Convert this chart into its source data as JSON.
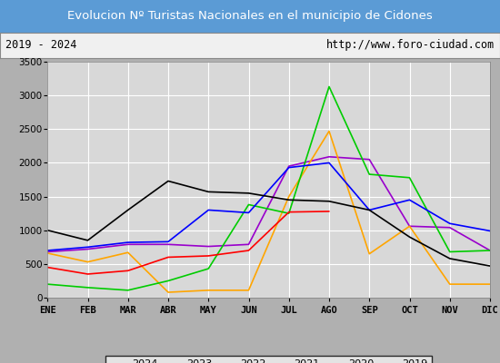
{
  "title": "Evolucion Nº Turistas Nacionales en el municipio de Cidones",
  "subtitle_left": "2019 - 2024",
  "subtitle_right": "http://www.foro-ciudad.com",
  "months": [
    "ENE",
    "FEB",
    "MAR",
    "ABR",
    "MAY",
    "JUN",
    "JUL",
    "AGO",
    "SEP",
    "OCT",
    "NOV",
    "DIC"
  ],
  "series": {
    "2024": [
      450,
      350,
      400,
      600,
      620,
      700,
      1270,
      1280,
      null,
      null,
      null,
      null
    ],
    "2023": [
      1000,
      850,
      1300,
      1730,
      1570,
      1550,
      1450,
      1430,
      1300,
      900,
      580,
      470
    ],
    "2022": [
      700,
      750,
      820,
      830,
      1300,
      1260,
      1930,
      2000,
      1300,
      1450,
      1100,
      990
    ],
    "2021": [
      200,
      150,
      110,
      250,
      430,
      1380,
      1250,
      3130,
      1830,
      1780,
      680,
      700
    ],
    "2020": [
      660,
      530,
      670,
      80,
      110,
      110,
      1500,
      2470,
      650,
      1060,
      200,
      200
    ],
    "2019": [
      680,
      720,
      790,
      790,
      760,
      790,
      1950,
      2090,
      2050,
      1060,
      1040,
      700
    ]
  },
  "colors": {
    "2024": "#ff0000",
    "2023": "#000000",
    "2022": "#0000ff",
    "2021": "#00cc00",
    "2020": "#ffa500",
    "2019": "#9900cc"
  },
  "ylim": [
    0,
    3500
  ],
  "yticks": [
    0,
    500,
    1000,
    1500,
    2000,
    2500,
    3000,
    3500
  ],
  "title_bg_color": "#5b9bd5",
  "title_font_color": "#ffffff",
  "plot_bg_color": "#d8d8d8",
  "frame_bg_color": "#c8c8c8",
  "subtitle_bg_color": "#f0f0f0",
  "grid_color": "#ffffff",
  "legend_border_color": "#000000",
  "fig_bg_color": "#b0b0b0"
}
